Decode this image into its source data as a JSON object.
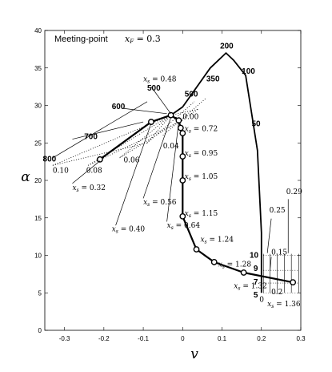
{
  "chart_data": {
    "type": "line",
    "title_text": "Meeting-point",
    "title_math": "x_F = 0.3",
    "xlabel": "v",
    "ylabel": "α",
    "xlim": [
      -0.35,
      0.3
    ],
    "ylim": [
      0,
      40
    ],
    "xticks": [
      "-0.3",
      "-0.2",
      "-0.1",
      "0",
      "0.1",
      "0.2",
      "0.3"
    ],
    "xtick_values": [
      -0.3,
      -0.2,
      -0.1,
      0,
      0.1,
      0.2,
      0.3
    ],
    "yticks": [
      "0",
      "5",
      "10",
      "15",
      "20",
      "25",
      "30",
      "35",
      "40"
    ],
    "ytick_values": [
      0,
      5,
      10,
      15,
      20,
      25,
      30,
      35,
      40
    ],
    "series": [
      {
        "points": [
          [
            -0.21,
            22.8
          ],
          [
            -0.08,
            27.8
          ],
          [
            -0.03,
            28.7
          ],
          [
            -0.01,
            28.0
          ],
          [
            -0.005,
            27.0
          ],
          [
            0.0,
            26.3
          ],
          [
            0.0,
            23.2
          ],
          [
            0.0,
            20.0
          ],
          [
            0.0,
            15.2
          ],
          [
            0.035,
            10.8
          ],
          [
            0.08,
            9.1
          ],
          [
            0.155,
            7.7
          ],
          [
            0.28,
            6.4
          ]
        ],
        "markers": [
          [
            -0.21,
            22.8
          ],
          [
            -0.08,
            27.8
          ],
          [
            -0.03,
            28.7
          ],
          [
            -0.01,
            28.0
          ],
          [
            -0.005,
            27.0
          ],
          [
            0.0,
            26.3
          ],
          [
            0.0,
            23.2
          ],
          [
            0.0,
            20.0
          ],
          [
            0.0,
            15.2
          ],
          [
            0.035,
            10.8
          ],
          [
            0.08,
            9.1
          ],
          [
            0.155,
            7.7
          ],
          [
            0.28,
            6.4
          ]
        ]
      },
      {
        "points": [
          [
            -0.21,
            22.8
          ],
          [
            -0.08,
            27.8
          ],
          [
            -0.03,
            28.7
          ],
          [
            0.0,
            29.8
          ],
          [
            0.07,
            35.0
          ],
          [
            0.11,
            37.0
          ],
          [
            0.13,
            36.0
          ],
          [
            0.16,
            34.0
          ],
          [
            0.19,
            24.0
          ],
          [
            0.2,
            13.0
          ],
          [
            0.2,
            9.5
          ],
          [
            0.2,
            6.5
          ],
          [
            0.2,
            5.0
          ]
        ]
      }
    ],
    "dotted_fan": {
      "vertex": [
        -0.03,
        28.7
      ],
      "targets": [
        [
          -0.33,
          22.0
        ],
        [
          -0.24,
          22.0
        ],
        [
          -0.16,
          23.0
        ],
        [
          -0.09,
          25.0
        ],
        [
          0.0,
          28.0
        ],
        [
          0.04,
          29.5
        ]
      ]
    },
    "xs_labels": [
      {
        "text": "x_s = 0.48",
        "at": [
          -0.1,
          33.2
        ]
      },
      {
        "text": "0.00",
        "at": [
          0.0,
          28.2
        ]
      },
      {
        "text": "x_s = 0.72",
        "at": [
          0.005,
          26.6
        ]
      },
      {
        "text": "x_s = 0.95",
        "at": [
          0.005,
          23.3
        ]
      },
      {
        "text": "x_s = 1.05",
        "at": [
          0.005,
          20.2
        ]
      },
      {
        "text": "x_s = 1.15",
        "at": [
          0.005,
          15.3
        ]
      },
      {
        "text": "x_s = 1.24",
        "at": [
          0.045,
          11.8
        ]
      },
      {
        "text": "x_s = 1.28",
        "at": [
          0.09,
          8.5
        ]
      },
      {
        "text": "x_s = 1.32",
        "at": [
          0.13,
          5.6
        ]
      },
      {
        "text": "x_s = 1.36",
        "at": [
          0.215,
          3.2
        ]
      },
      {
        "text": "x_s = 0.32",
        "at": [
          -0.28,
          18.7
        ]
      },
      {
        "text": "x_s = 0.40",
        "at": [
          -0.18,
          13.2
        ]
      },
      {
        "text": "x_s = 0.56",
        "at": [
          -0.1,
          16.8
        ]
      },
      {
        "text": "x_s = 0.64",
        "at": [
          -0.04,
          13.7
        ]
      }
    ],
    "plain_labels": [
      {
        "text": "0.04",
        "at": [
          -0.05,
          24.3
        ]
      },
      {
        "text": "0.06",
        "at": [
          -0.15,
          22.4
        ]
      },
      {
        "text": "0.08",
        "at": [
          -0.245,
          21.0
        ]
      },
      {
        "text": "0.10",
        "at": [
          -0.33,
          21.0
        ]
      },
      {
        "text": "0.29",
        "at": [
          0.263,
          18.2
        ]
      },
      {
        "text": "0.25",
        "at": [
          0.22,
          15.7
        ]
      },
      {
        "text": "0.15",
        "at": [
          0.225,
          10.1
        ]
      },
      {
        "text": "0.2",
        "at": [
          0.225,
          4.8
        ]
      },
      {
        "text": "0",
        "at": [
          0.195,
          3.8
        ]
      }
    ],
    "bold_labels": [
      {
        "text": "200",
        "at": [
          0.095,
          37.6
        ]
      },
      {
        "text": "100",
        "at": [
          0.15,
          34.2
        ]
      },
      {
        "text": "350",
        "at": [
          0.06,
          33.2
        ]
      },
      {
        "text": "500",
        "at": [
          -0.09,
          32.0
        ]
      },
      {
        "text": "500",
        "at": [
          0.005,
          31.2
        ]
      },
      {
        "text": "600",
        "at": [
          -0.18,
          29.5
        ]
      },
      {
        "text": "700",
        "at": [
          -0.25,
          25.5
        ]
      },
      {
        "text": "800",
        "at": [
          -0.355,
          22.5
        ]
      },
      {
        "text": "50",
        "at": [
          0.175,
          27.2
        ]
      },
      {
        "text": "10",
        "at": [
          0.17,
          9.7
        ]
      },
      {
        "text": "9",
        "at": [
          0.18,
          7.9
        ]
      },
      {
        "text": "7",
        "at": [
          0.18,
          6.1
        ]
      },
      {
        "text": "5",
        "at": [
          0.18,
          4.4
        ]
      }
    ]
  }
}
